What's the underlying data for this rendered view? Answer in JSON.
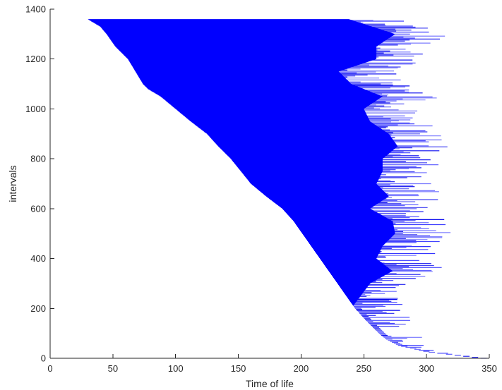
{
  "chart_data": {
    "type": "bar",
    "title": "",
    "xlabel": "Time of life",
    "ylabel": "intervals",
    "xlim": [
      0,
      350
    ],
    "ylim": [
      0,
      1400
    ],
    "xticks": [
      0,
      50,
      100,
      150,
      200,
      250,
      300,
      350
    ],
    "yticks": [
      0,
      200,
      400,
      600,
      800,
      1000,
      1200,
      1400
    ],
    "grid": false,
    "legend": "none",
    "series_color": "#0000ff",
    "interval_count": 1360,
    "start_profile": [
      [
        0,
        343
      ],
      [
        25,
        300
      ],
      [
        50,
        278
      ],
      [
        75,
        268
      ],
      [
        100,
        262
      ],
      [
        150,
        252
      ],
      [
        200,
        243
      ],
      [
        250,
        236
      ],
      [
        300,
        229
      ],
      [
        350,
        222
      ],
      [
        400,
        215
      ],
      [
        450,
        208
      ],
      [
        500,
        201
      ],
      [
        550,
        194
      ],
      [
        600,
        185
      ],
      [
        650,
        172
      ],
      [
        700,
        160
      ],
      [
        750,
        152
      ],
      [
        800,
        144
      ],
      [
        850,
        134
      ],
      [
        900,
        125
      ],
      [
        950,
        112
      ],
      [
        1000,
        100
      ],
      [
        1050,
        88
      ],
      [
        1080,
        78
      ],
      [
        1100,
        74
      ],
      [
        1150,
        68
      ],
      [
        1200,
        62
      ],
      [
        1250,
        52
      ],
      [
        1300,
        45
      ],
      [
        1330,
        40
      ],
      [
        1360,
        30
      ]
    ],
    "end_profile": [
      [
        0,
        343
      ],
      [
        20,
        330
      ],
      [
        40,
        315
      ],
      [
        100,
        290
      ],
      [
        200,
        285
      ],
      [
        300,
        300
      ],
      [
        350,
        318
      ],
      [
        400,
        305
      ],
      [
        450,
        310
      ],
      [
        500,
        320
      ],
      [
        550,
        318
      ],
      [
        600,
        300
      ],
      [
        650,
        315
      ],
      [
        700,
        305
      ],
      [
        750,
        310
      ],
      [
        800,
        310
      ],
      [
        850,
        322
      ],
      [
        900,
        315
      ],
      [
        950,
        300
      ],
      [
        1000,
        295
      ],
      [
        1050,
        310
      ],
      [
        1100,
        285
      ],
      [
        1150,
        275
      ],
      [
        1200,
        305
      ],
      [
        1250,
        305
      ],
      [
        1300,
        320
      ],
      [
        1360,
        283
      ]
    ]
  }
}
